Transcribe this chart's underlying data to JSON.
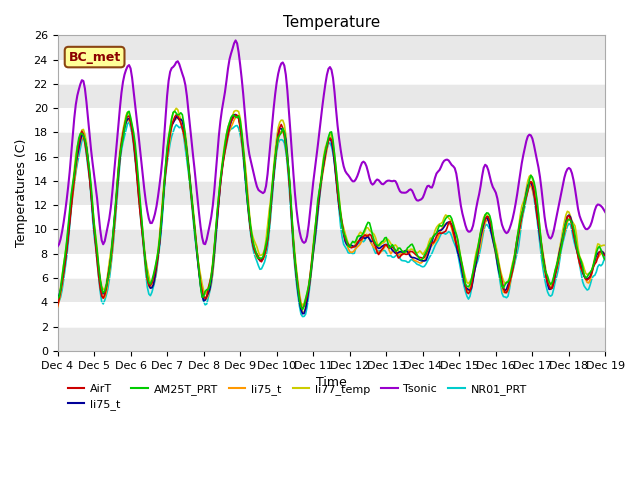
{
  "title": "Temperature",
  "ylabel": "Temperatures (C)",
  "xlabel": "Time",
  "ylim": [
    0,
    26
  ],
  "xlim": [
    0,
    360
  ],
  "x_tick_labels": [
    "Dec 4",
    "Dec 5",
    "Dec 6",
    "Dec 7",
    "Dec 8",
    "Dec 9",
    "Dec 10",
    "Dec 11",
    "Dec 12",
    "Dec 13",
    "Dec 14",
    "Dec 15",
    "Dec 16",
    "Dec 17",
    "Dec 18",
    "Dec 19"
  ],
  "x_tick_positions": [
    0,
    24,
    48,
    72,
    96,
    120,
    144,
    168,
    192,
    216,
    240,
    264,
    288,
    312,
    336,
    360
  ],
  "yticks": [
    0,
    2,
    4,
    6,
    8,
    10,
    12,
    14,
    16,
    18,
    20,
    22,
    24,
    26
  ],
  "series": {
    "AirT": {
      "color": "#cc0000",
      "lw": 1.2,
      "zorder": 5
    },
    "li75_t_b": {
      "color": "#000099",
      "lw": 1.2,
      "zorder": 4
    },
    "AM25T_PRT": {
      "color": "#00cc00",
      "lw": 1.2,
      "zorder": 6
    },
    "li75_t_o": {
      "color": "#ff9900",
      "lw": 1.2,
      "zorder": 3
    },
    "li77_temp": {
      "color": "#cccc00",
      "lw": 1.2,
      "zorder": 2
    },
    "Tsonic": {
      "color": "#9900cc",
      "lw": 1.5,
      "zorder": 7
    },
    "NR01_PRT": {
      "color": "#00cccc",
      "lw": 1.2,
      "zorder": 1
    }
  },
  "legend_entries": [
    {
      "label": "AirT",
      "color": "#cc0000"
    },
    {
      "label": "li75_t",
      "color": "#000099"
    },
    {
      "label": "AM25T_PRT",
      "color": "#00cc00"
    },
    {
      "label": "li75_t",
      "color": "#ff9900"
    },
    {
      "label": "li77_temp",
      "color": "#cccc00"
    },
    {
      "label": "Tsonic",
      "color": "#9900cc"
    },
    {
      "label": "NR01_PRT",
      "color": "#00cccc"
    }
  ],
  "bc_met_label": "BC_met",
  "background_color": "#e8e8e8",
  "plot_bg_color": "#ffffff",
  "band_color1": "#e8e8e8",
  "band_color2": "#ffffff"
}
